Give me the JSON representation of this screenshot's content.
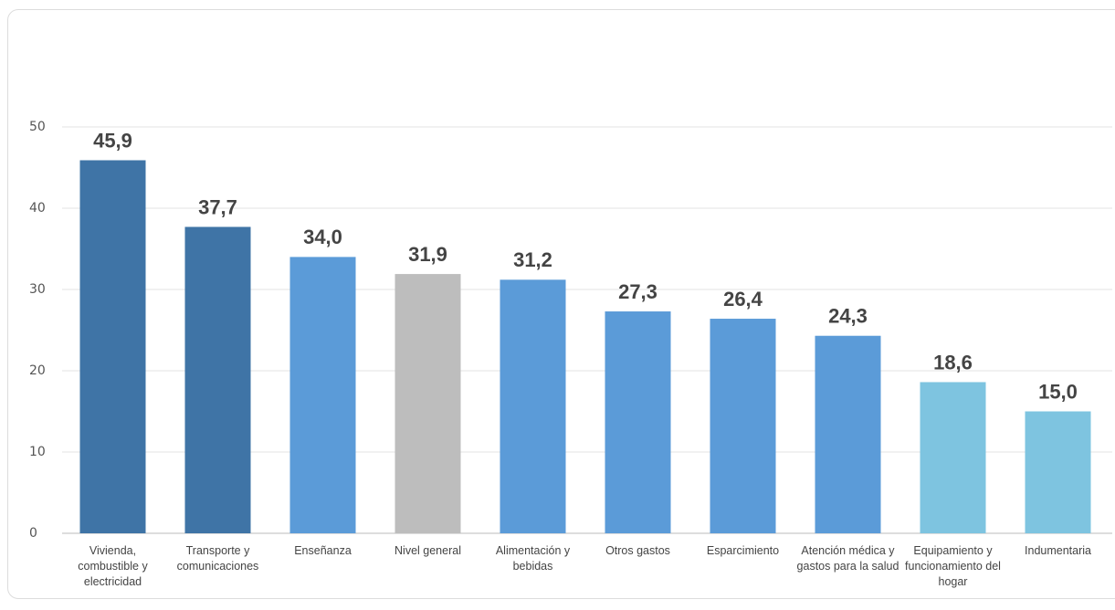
{
  "chart_data": {
    "type": "bar",
    "categories": [
      "Vivienda, combustible y electricidad",
      "Transporte y comunicaciones",
      "Enseñanza",
      "Nivel general",
      "Alimentación y bebidas",
      "Otros gastos",
      "Esparcimiento",
      "Atención médica y gastos para la salud",
      "Equipamiento y funcionamiento del hogar",
      "Indumentaria"
    ],
    "values": [
      45.9,
      37.7,
      34.0,
      31.9,
      31.2,
      27.3,
      26.4,
      24.3,
      18.6,
      15.0
    ],
    "value_labels": [
      "45,9",
      "37,7",
      "34,0",
      "31,9",
      "31,2",
      "27,3",
      "26,4",
      "24,3",
      "18,6",
      "15,0"
    ],
    "colors": [
      "#3f74a6",
      "#3f74a6",
      "#5b9bd8",
      "#bdbdbd",
      "#5b9bd8",
      "#5b9bd8",
      "#5b9bd8",
      "#5b9bd8",
      "#7ec4e0",
      "#7ec4e0"
    ],
    "ylim": [
      0,
      50
    ],
    "yticks": [
      0,
      10,
      20,
      30,
      40,
      50
    ],
    "grid": true
  }
}
